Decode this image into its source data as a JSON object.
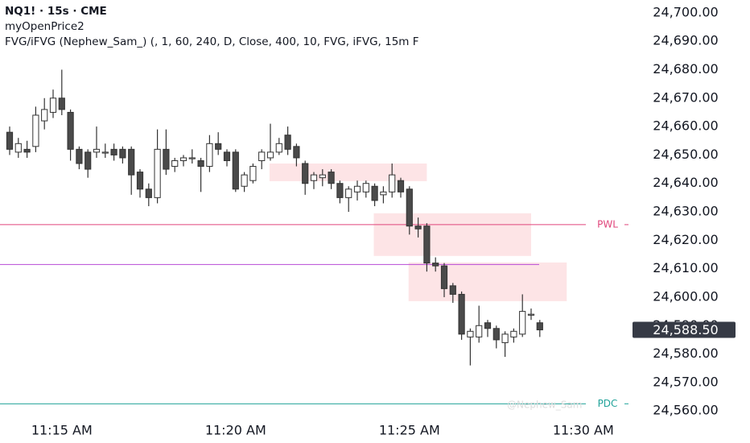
{
  "chart_data": {
    "type": "candlestick",
    "title": "NQ1! · 15s · CME",
    "subtitle": "myOpenPrice2",
    "annotation": "FVG/iFVG (Nephew_Sam_) (, 1, 60, 240, D, Close, 400, 10, FVG, iFVG, 15m F",
    "watermark": "@Nephew_Sam",
    "categories": [
      null,
      null,
      null,
      null,
      null,
      null,
      "11:15 AM",
      null,
      null,
      null,
      null,
      null,
      null,
      null,
      null,
      null,
      null,
      null,
      null,
      null,
      null,
      null,
      null,
      null,
      null,
      null,
      "11:20 AM",
      null,
      null,
      null,
      null,
      null,
      null,
      null,
      null,
      null,
      null,
      null,
      null,
      null,
      null,
      null,
      null,
      null,
      null,
      null,
      "11:25 AM",
      null,
      null,
      null,
      null,
      null,
      null,
      null,
      null,
      null,
      null,
      null,
      null,
      null,
      null,
      null,
      null,
      null,
      null,
      null,
      "11:30 AM"
    ],
    "open": [
      24658,
      24651,
      24652,
      24653,
      24662,
      24665,
      24670,
      24665,
      24652,
      24651,
      24651,
      24651,
      24652,
      24652,
      24652,
      24644,
      24638,
      24635,
      24652,
      24646,
      24648,
      24649,
      24648,
      24646,
      24654,
      24651,
      24651,
      24639,
      24641,
      24648,
      24649,
      24651,
      24657,
      24653,
      24647,
      24641,
      24642,
      24644,
      24640,
      24635,
      24637,
      24637,
      24639,
      24636,
      24637,
      24641,
      24638,
      24625,
      24625,
      24612,
      24611,
      24604,
      24601,
      24586,
      24586,
      24591,
      24589,
      24584,
      24586,
      24587,
      24594,
      24591,
      null,
      null,
      null,
      null,
      null
    ],
    "high": [
      24660,
      24656,
      24655,
      24667,
      24670,
      24673,
      24680,
      24666,
      24653,
      24652,
      24660,
      24654,
      24654,
      24653,
      24653,
      24645,
      24640,
      24659,
      24659,
      24649,
      24650,
      24652,
      24649,
      24657,
      24658,
      24652,
      24652,
      24644,
      24647,
      24652,
      24661,
      24656,
      24660,
      24654,
      24648,
      24644,
      24645,
      24645,
      24641,
      24639,
      24641,
      24641,
      24640,
      24639,
      24647,
      24642,
      24639,
      24628,
      24626,
      24614,
      24612,
      24605,
      24602,
      24589,
      24597,
      24592,
      24590,
      24588,
      24589,
      24601,
      24596,
      24592,
      null,
      null,
      null,
      null,
      null
    ],
    "low": [
      24650,
      24649,
      24649,
      24651,
      24659,
      24663,
      24664,
      24648,
      24645,
      24642,
      24649,
      24649,
      24648,
      24647,
      24636,
      24635,
      24632,
      24633,
      24643,
      24644,
      24646,
      24647,
      24637,
      24644,
      24650,
      24646,
      24637,
      24637,
      24640,
      24645,
      24648,
      24650,
      24650,
      24646,
      24636,
      24638,
      24639,
      24638,
      24633,
      24630,
      24634,
      24635,
      24632,
      24633,
      24635,
      24635,
      24622,
      24621,
      24609,
      24609,
      24600,
      24598,
      24585,
      24576,
      24584,
      24586,
      24582,
      24579,
      24584,
      24586,
      24592,
      24586,
      null,
      null,
      null,
      null,
      null
    ],
    "close": [
      24652,
      24654,
      24651,
      24664,
      24666,
      24670,
      24666,
      24652,
      24647,
      24645,
      24652,
      24651,
      24650,
      24649,
      24643,
      24638,
      24635,
      24652,
      24645,
      24648,
      24649,
      24649,
      24646,
      24654,
      24652,
      24648,
      24638,
      24643,
      24646,
      24651,
      24651,
      24654,
      24652,
      24649,
      24640,
      24643,
      24643,
      24640,
      24635,
      24638,
      24639,
      24640,
      24634,
      24637,
      24643,
      24637,
      24625,
      24624,
      24612,
      24611,
      24603,
      24601,
      24587,
      24588,
      24590,
      24589,
      24585,
      24587,
      24588,
      24595,
      24594,
      24588.5,
      null,
      null,
      null,
      null,
      null
    ],
    "up_color": "#ffffff",
    "down_color": "#4a4a4a",
    "wick_color": "#333333",
    "ylim": [
      24555.8,
      24704.5
    ],
    "yticks": [
      {
        "value": 24560,
        "label": "24,560.00"
      },
      {
        "value": 24570,
        "label": "24,570.00"
      },
      {
        "value": 24580,
        "label": "24,580.00"
      },
      {
        "value": 24590,
        "label": "24,590.00"
      },
      {
        "value": 24600,
        "label": "24,600.00"
      },
      {
        "value": 24610,
        "label": "24,610.00"
      },
      {
        "value": 24620,
        "label": "24,620.00"
      },
      {
        "value": 24630,
        "label": "24,630.00"
      },
      {
        "value": 24640,
        "label": "24,640.00"
      },
      {
        "value": 24650,
        "label": "24,650.00"
      },
      {
        "value": 24660,
        "label": "24,660.00"
      },
      {
        "value": 24670,
        "label": "24,670.00"
      },
      {
        "value": 24680,
        "label": "24,680.00"
      },
      {
        "value": 24690,
        "label": "24,690.00"
      },
      {
        "value": 24700,
        "label": "24,700.00"
      }
    ],
    "last_price": {
      "value": 24588.5,
      "label": "24,588.50"
    },
    "levels": [
      {
        "name": "PWL",
        "value": 24625.5,
        "color": "#e0457b"
      },
      {
        "value": 24611.5,
        "color": "#b84ad6"
      },
      {
        "name": "PDC",
        "value": 24562.5,
        "color": "#22a39a"
      }
    ],
    "zones": [
      {
        "top": 24647,
        "bottom": 24640.8,
        "color": "#fde4e6"
      },
      {
        "top": 24629.5,
        "bottom": 24614.5,
        "color": "#fde4e6"
      },
      {
        "top": 24612.2,
        "bottom": 24598.6,
        "color": "#fde4e6"
      }
    ]
  }
}
